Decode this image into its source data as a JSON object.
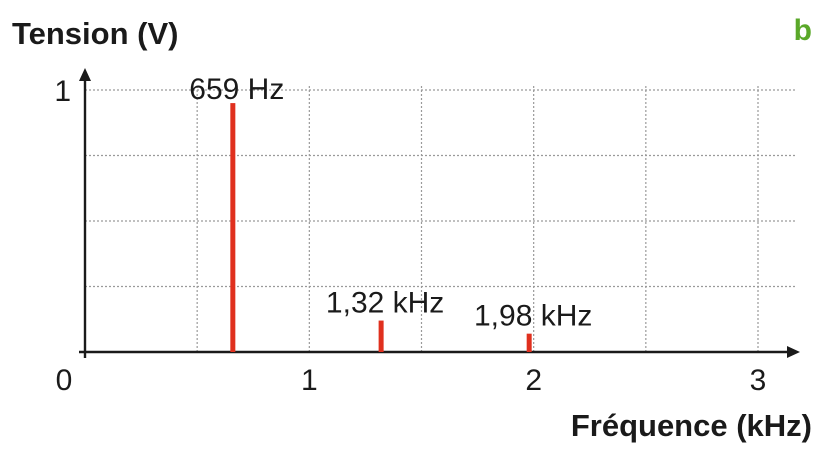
{
  "panel_label": "b",
  "colors": {
    "grid": "#9a9a9a",
    "axis": "#1a1a1a",
    "bar": "#e0301e",
    "label": "#1a1a1a",
    "panel_label": "#5aa829"
  },
  "chart_data": {
    "type": "bar",
    "ylabel": "Tension (V)",
    "xlabel": "Fréquence (kHz)",
    "xlim": [
      0,
      3
    ],
    "ylim": [
      0,
      1
    ],
    "x_ticks": [
      {
        "value": 1,
        "label": "1"
      },
      {
        "value": 2,
        "label": "2"
      },
      {
        "value": 3,
        "label": "3"
      }
    ],
    "y_ticks": [
      {
        "value": 1,
        "label": "1"
      }
    ],
    "origin_label": "0",
    "grid": {
      "vertical": [
        0.5,
        1,
        1.5,
        2,
        2.5,
        3
      ],
      "horizontal": [
        0.25,
        0.5,
        0.75,
        1
      ]
    },
    "bars": [
      {
        "x": 0.659,
        "value": 0.95,
        "label": "659 Hz"
      },
      {
        "x": 1.32,
        "value": 0.12,
        "label": "1,32 kHz"
      },
      {
        "x": 1.98,
        "value": 0.07,
        "label": "1,98 kHz"
      }
    ]
  }
}
